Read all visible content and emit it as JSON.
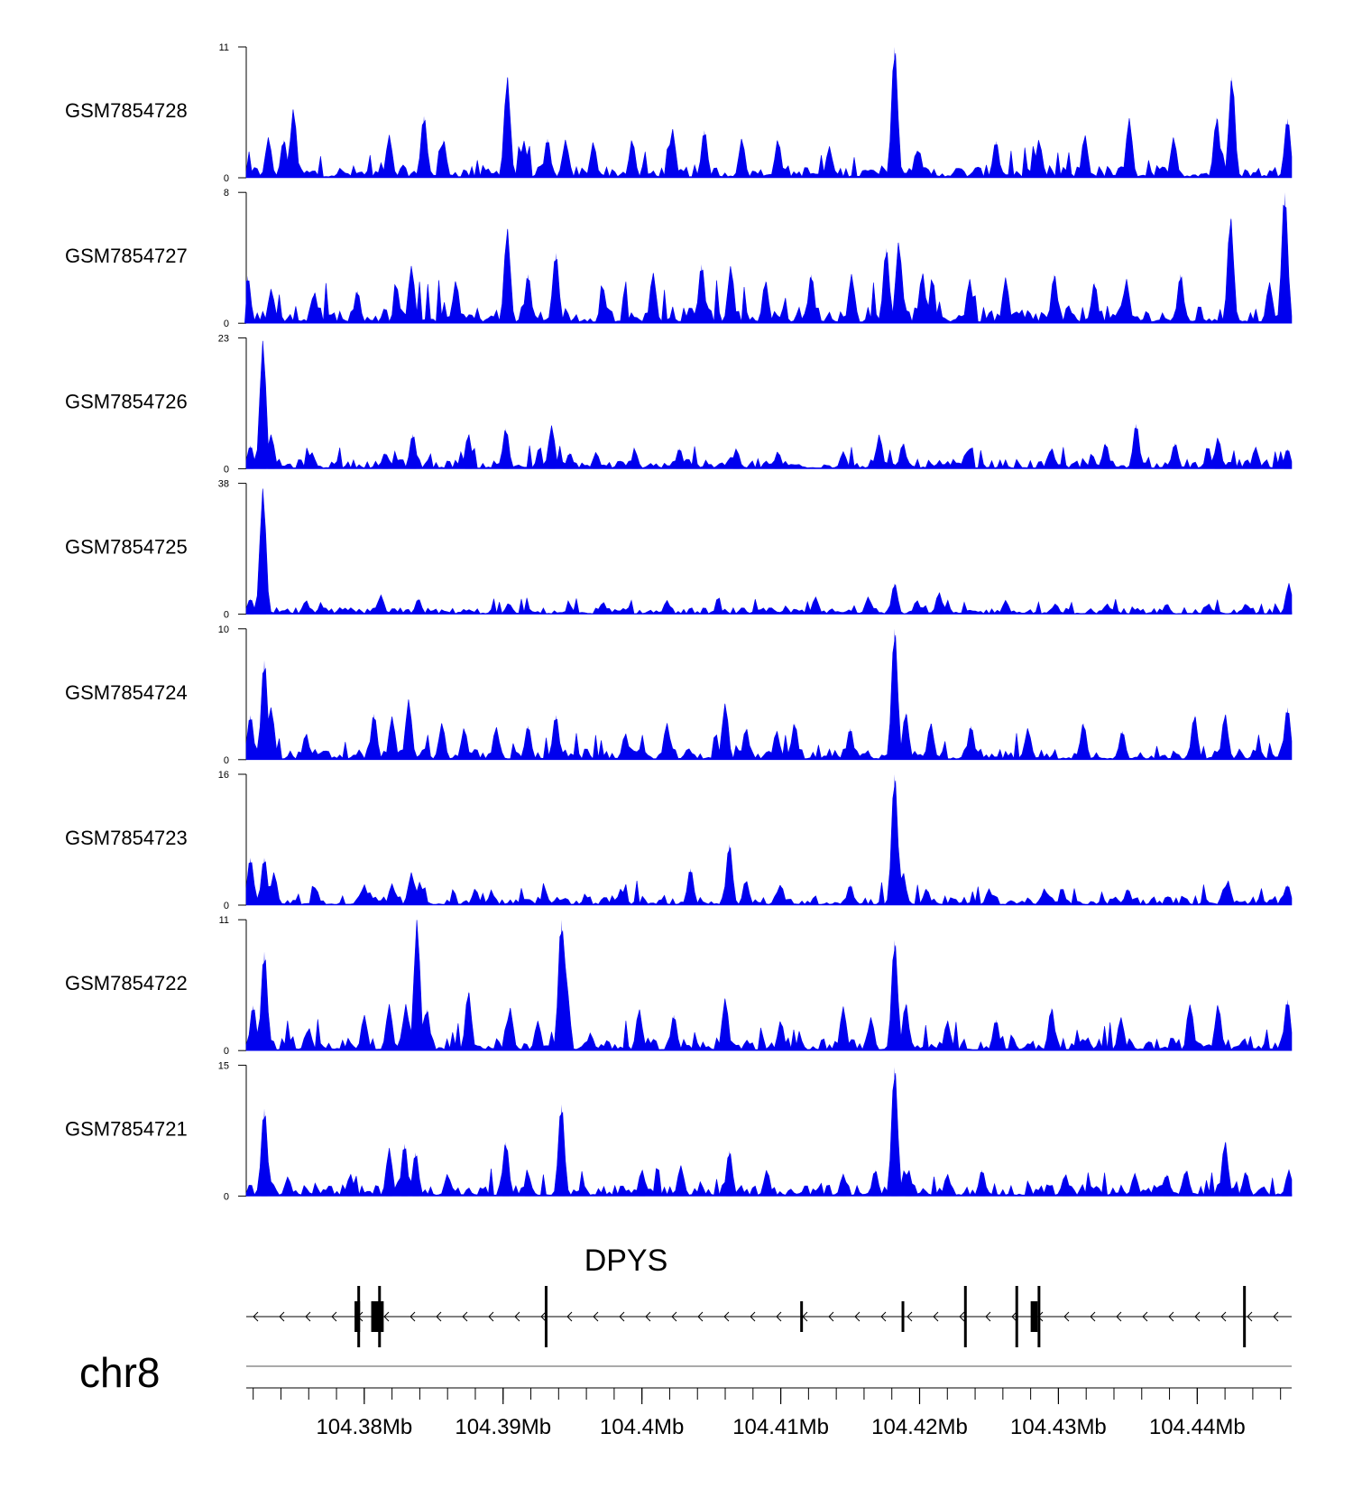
{
  "chart_data": {
    "type": "area",
    "title": "",
    "chromosome": "chr8",
    "gene": {
      "name": "DPYS",
      "strand": "-"
    },
    "x_axis": {
      "unit": "Mb",
      "range": [
        104.3715,
        104.4468
      ],
      "ticks": [
        104.38,
        104.39,
        104.4,
        104.41,
        104.42,
        104.43,
        104.44
      ],
      "tick_labels": [
        "104.38Mb",
        "104.39Mb",
        "104.4Mb",
        "104.41Mb",
        "104.42Mb",
        "104.43Mb",
        "104.44Mb"
      ]
    },
    "color": "#0000ee",
    "tracks": [
      {
        "name": "GSM7854728",
        "ymax": 11,
        "ymax_label": "11",
        "ymin_label": "0",
        "baseline": 0.45,
        "peaks": [
          [
            104.3731,
            3.4
          ],
          [
            104.3742,
            3.2
          ],
          [
            104.3749,
            5.8
          ],
          [
            104.3818,
            3.6
          ],
          [
            104.3843,
            5.2
          ],
          [
            104.3857,
            3.2
          ],
          [
            104.3903,
            8.5
          ],
          [
            104.3915,
            3.1
          ],
          [
            104.3932,
            3.3
          ],
          [
            104.3945,
            3.2
          ],
          [
            104.3965,
            3.0
          ],
          [
            104.3993,
            3.2
          ],
          [
            104.4022,
            4.1
          ],
          [
            104.4045,
            4.0
          ],
          [
            104.4072,
            3.3
          ],
          [
            104.4098,
            3.2
          ],
          [
            104.4135,
            2.6
          ],
          [
            104.4182,
            11.0
          ],
          [
            104.4198,
            2.3
          ],
          [
            104.4255,
            3.1
          ],
          [
            104.4286,
            3.2
          ],
          [
            104.4319,
            3.6
          ],
          [
            104.4351,
            5.0
          ],
          [
            104.4383,
            3.4
          ],
          [
            104.4414,
            5.1
          ],
          [
            104.4425,
            8.5
          ],
          [
            104.4465,
            5.0
          ]
        ]
      },
      {
        "name": "GSM7854727",
        "ymax": 8,
        "ymax_label": "8",
        "ymin_label": "0",
        "baseline": 0.45,
        "peaks": [
          [
            104.3716,
            2.9
          ],
          [
            104.3733,
            2.1
          ],
          [
            104.3764,
            1.9
          ],
          [
            104.3795,
            2.0
          ],
          [
            104.3834,
            3.5
          ],
          [
            104.3866,
            2.6
          ],
          [
            104.3903,
            5.8
          ],
          [
            104.3918,
            3.0
          ],
          [
            104.3938,
            4.3
          ],
          [
            104.3972,
            2.1
          ],
          [
            104.4008,
            3.1
          ],
          [
            104.4043,
            3.6
          ],
          [
            104.4064,
            3.5
          ],
          [
            104.4089,
            2.6
          ],
          [
            104.4122,
            3.0
          ],
          [
            104.4151,
            3.0
          ],
          [
            104.4176,
            4.6
          ],
          [
            104.4185,
            5.0
          ],
          [
            104.4202,
            3.1
          ],
          [
            104.4236,
            2.7
          ],
          [
            104.4262,
            2.8
          ],
          [
            104.4297,
            3.0
          ],
          [
            104.4326,
            2.5
          ],
          [
            104.4349,
            2.7
          ],
          [
            104.4388,
            3.0
          ],
          [
            104.4424,
            6.5
          ],
          [
            104.4452,
            2.5
          ],
          [
            104.4463,
            8.0
          ]
        ]
      },
      {
        "name": "GSM7854726",
        "ymax": 23,
        "ymax_label": "23",
        "ymin_label": "0",
        "baseline": 0.7,
        "peaks": [
          [
            104.3718,
            4.1
          ],
          [
            104.3727,
            22.5
          ],
          [
            104.3733,
            6.0
          ],
          [
            104.3762,
            2.9
          ],
          [
            104.3815,
            2.8
          ],
          [
            104.3835,
            6.1
          ],
          [
            104.3875,
            6.1
          ],
          [
            104.3902,
            7.1
          ],
          [
            104.3935,
            7.6
          ],
          [
            104.3948,
            2.8
          ],
          [
            104.3967,
            2.9
          ],
          [
            104.3995,
            3.0
          ],
          [
            104.4027,
            3.6
          ],
          [
            104.4068,
            3.5
          ],
          [
            104.4098,
            3.0
          ],
          [
            104.4145,
            3.0
          ],
          [
            104.4171,
            6.0
          ],
          [
            104.4188,
            4.5
          ],
          [
            104.4235,
            3.2
          ],
          [
            104.4295,
            3.6
          ],
          [
            104.4334,
            4.5
          ],
          [
            104.4356,
            7.9
          ],
          [
            104.4384,
            4.5
          ],
          [
            104.4415,
            5.5
          ],
          [
            104.4442,
            3.8
          ],
          [
            104.4465,
            3.5
          ]
        ]
      },
      {
        "name": "GSM7854725",
        "ymax": 38,
        "ymax_label": "38",
        "ymin_label": "0",
        "baseline": 0.8,
        "peaks": [
          [
            104.3718,
            4.5
          ],
          [
            104.3727,
            36.5
          ],
          [
            104.3758,
            4.0
          ],
          [
            104.3812,
            5.6
          ],
          [
            104.3839,
            4.5
          ],
          [
            104.3904,
            3.2
          ],
          [
            104.3948,
            2.5
          ],
          [
            104.3972,
            3.5
          ],
          [
            104.4018,
            4.0
          ],
          [
            104.4125,
            5.0
          ],
          [
            104.4163,
            5.0
          ],
          [
            104.4182,
            9.0
          ],
          [
            104.4198,
            4.0
          ],
          [
            104.4214,
            6.3
          ],
          [
            104.4262,
            4.0
          ],
          [
            104.4298,
            3.0
          ],
          [
            104.4335,
            3.0
          ],
          [
            104.4378,
            3.0
          ],
          [
            104.4408,
            3.0
          ],
          [
            104.4435,
            3.0
          ],
          [
            104.4466,
            9.0
          ]
        ]
      },
      {
        "name": "GSM7854724",
        "ymax": 10,
        "ymax_label": "10",
        "ymin_label": "0",
        "baseline": 0.35,
        "peaks": [
          [
            104.3718,
            3.4
          ],
          [
            104.3728,
            7.6
          ],
          [
            104.3733,
            4.0
          ],
          [
            104.3758,
            2.0
          ],
          [
            104.3807,
            3.5
          ],
          [
            104.382,
            3.3
          ],
          [
            104.3832,
            4.6
          ],
          [
            104.3856,
            2.8
          ],
          [
            104.3872,
            2.4
          ],
          [
            104.3895,
            2.5
          ],
          [
            104.3918,
            2.6
          ],
          [
            104.3938,
            3.4
          ],
          [
            104.3988,
            2.0
          ],
          [
            104.4018,
            2.8
          ],
          [
            104.406,
            4.3
          ],
          [
            104.4075,
            2.4
          ],
          [
            104.4097,
            2.2
          ],
          [
            104.411,
            2.8
          ],
          [
            104.415,
            2.4
          ],
          [
            104.4182,
            10.0
          ],
          [
            104.419,
            3.6
          ],
          [
            104.4208,
            2.8
          ],
          [
            104.4237,
            2.6
          ],
          [
            104.4278,
            2.4
          ],
          [
            104.4318,
            2.8
          ],
          [
            104.4346,
            2.2
          ],
          [
            104.4398,
            3.4
          ],
          [
            104.442,
            3.5
          ],
          [
            104.4465,
            4.0
          ]
        ]
      },
      {
        "name": "GSM7854723",
        "ymax": 16,
        "ymax_label": "16",
        "ymin_label": "0",
        "baseline": 0.5,
        "peaks": [
          [
            104.3718,
            5.8
          ],
          [
            104.3728,
            5.8
          ],
          [
            104.3735,
            4.0
          ],
          [
            104.3765,
            2.1
          ],
          [
            104.38,
            2.5
          ],
          [
            104.382,
            2.6
          ],
          [
            104.3834,
            4.0
          ],
          [
            104.384,
            2.8
          ],
          [
            104.388,
            2.0
          ],
          [
            104.393,
            1.8
          ],
          [
            104.3985,
            2.0
          ],
          [
            104.4035,
            4.5
          ],
          [
            104.4063,
            7.5
          ],
          [
            104.4075,
            3.0
          ],
          [
            104.41,
            2.5
          ],
          [
            104.415,
            2.5
          ],
          [
            104.4182,
            16.0
          ],
          [
            104.4188,
            4.0
          ],
          [
            104.4205,
            2.0
          ],
          [
            104.425,
            2.0
          ],
          [
            104.429,
            2.0
          ],
          [
            104.435,
            2.0
          ],
          [
            104.4422,
            3.0
          ],
          [
            104.4465,
            2.5
          ]
        ]
      },
      {
        "name": "GSM7854722",
        "ymax": 11,
        "ymax_label": "11",
        "ymin_label": "0",
        "baseline": 0.45,
        "peaks": [
          [
            104.372,
            3.8
          ],
          [
            104.3728,
            8.3
          ],
          [
            104.376,
            1.9
          ],
          [
            104.38,
            3.0
          ],
          [
            104.3818,
            3.9
          ],
          [
            104.383,
            3.9
          ],
          [
            104.3838,
            11.0
          ],
          [
            104.3845,
            3.5
          ],
          [
            104.3875,
            5.0
          ],
          [
            104.3905,
            3.6
          ],
          [
            104.3925,
            2.5
          ],
          [
            104.3942,
            11.0
          ],
          [
            104.3945,
            7.0
          ],
          [
            104.3998,
            3.5
          ],
          [
            104.4023,
            3.0
          ],
          [
            104.406,
            4.4
          ],
          [
            104.41,
            2.5
          ],
          [
            104.4145,
            3.7
          ],
          [
            104.4165,
            2.8
          ],
          [
            104.4182,
            9.3
          ],
          [
            104.419,
            4.0
          ],
          [
            104.422,
            2.5
          ],
          [
            104.4255,
            2.6
          ],
          [
            104.4295,
            3.6
          ],
          [
            104.4345,
            2.8
          ],
          [
            104.4395,
            3.9
          ],
          [
            104.4415,
            3.9
          ],
          [
            104.4465,
            4.3
          ]
        ]
      },
      {
        "name": "GSM7854721",
        "ymax": 15,
        "ymax_label": "15",
        "ymin_label": "0",
        "baseline": 0.55,
        "peaks": [
          [
            104.3728,
            10.0
          ],
          [
            104.3745,
            2.2
          ],
          [
            104.379,
            2.5
          ],
          [
            104.3818,
            5.5
          ],
          [
            104.3829,
            6.0
          ],
          [
            104.3837,
            5.0
          ],
          [
            104.386,
            2.5
          ],
          [
            104.3902,
            6.2
          ],
          [
            104.3918,
            2.4
          ],
          [
            104.3942,
            10.5
          ],
          [
            104.4,
            3.0
          ],
          [
            104.4028,
            3.5
          ],
          [
            104.4063,
            5.2
          ],
          [
            104.409,
            3.0
          ],
          [
            104.4145,
            2.5
          ],
          [
            104.4168,
            3.0
          ],
          [
            104.4182,
            14.8
          ],
          [
            104.4192,
            3.0
          ],
          [
            104.422,
            2.5
          ],
          [
            104.4245,
            3.0
          ],
          [
            104.4305,
            2.5
          ],
          [
            104.4355,
            2.6
          ],
          [
            104.4378,
            2.5
          ],
          [
            104.4392,
            3.0
          ],
          [
            104.442,
            6.3
          ],
          [
            104.4435,
            2.8
          ],
          [
            104.4466,
            3.0
          ]
        ]
      }
    ],
    "gene_model": {
      "span": [
        104.3715,
        104.4468
      ],
      "intron_arrow": "<",
      "exons": [
        {
          "start": 104.3793,
          "end": 104.3797,
          "type": "cds"
        },
        {
          "start": 104.3805,
          "end": 104.3814,
          "type": "cds"
        },
        {
          "pos": 104.3796,
          "type": "line"
        },
        {
          "pos": 104.3811,
          "type": "line"
        },
        {
          "pos": 104.3931,
          "type": "line"
        },
        {
          "pos": 104.4115,
          "type": "line"
        },
        {
          "pos": 104.4188,
          "type": "line"
        },
        {
          "pos": 104.4233,
          "type": "line"
        },
        {
          "pos": 104.427,
          "type": "line"
        },
        {
          "start": 104.428,
          "end": 104.4285,
          "type": "cds"
        },
        {
          "pos": 104.4286,
          "type": "line"
        },
        {
          "pos": 104.4434,
          "type": "line"
        }
      ]
    }
  }
}
